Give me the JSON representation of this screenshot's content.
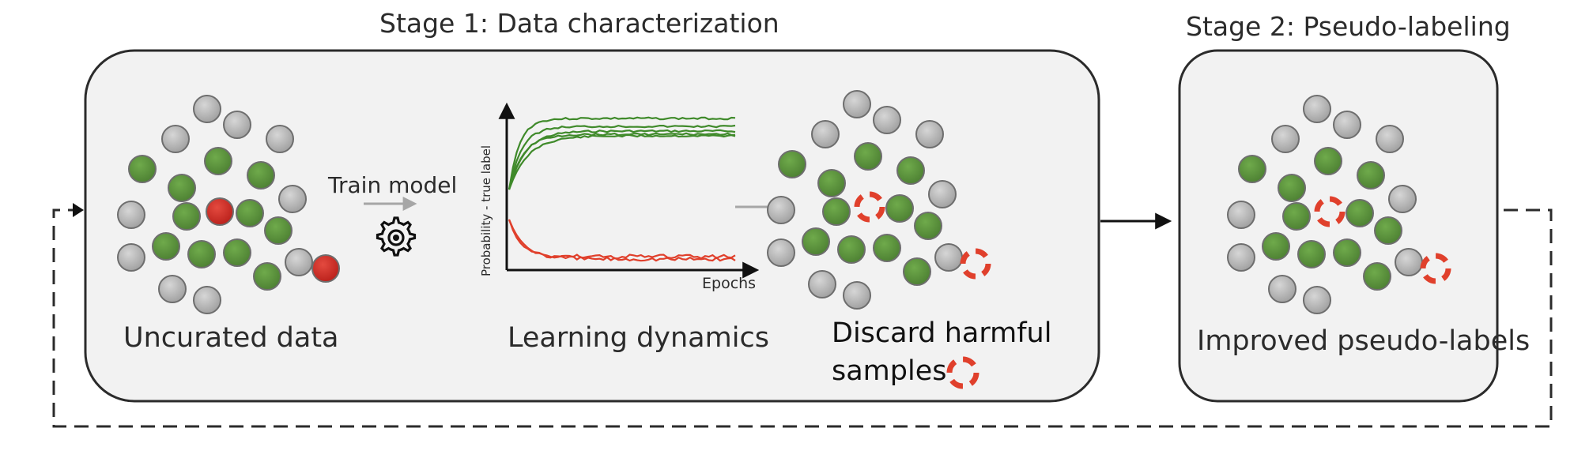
{
  "stage1": {
    "title": "Stage 1: Data characterization",
    "train_label": "Train model",
    "uncurated_caption": "Uncurated data",
    "dynamics_caption": "Learning dynamics",
    "discard_line1": "Discard harmful",
    "discard_line2": "samples",
    "plot_ylabel": "Probability - true label",
    "plot_xlabel": "Epochs"
  },
  "stage2": {
    "title": "Stage 2: Pseudo-labeling",
    "caption": "Improved pseudo-labels"
  },
  "colors": {
    "panel_fill": "#f2f2f2",
    "panel_stroke": "#2b2b2b",
    "gray_sample": "#b4b4b4",
    "green_sample": "#5f9640",
    "red_sample": "#d32f2a",
    "discard_ring": "#e0402c",
    "green_curve": "#3f8a2a",
    "red_curve": "#e0402c",
    "arrow_gray": "#a6a6a6"
  },
  "icons": [
    "gear-icon",
    "gray-arrow-icon",
    "black-arrow-icon",
    "dashed-loop-arrow-icon"
  ]
}
